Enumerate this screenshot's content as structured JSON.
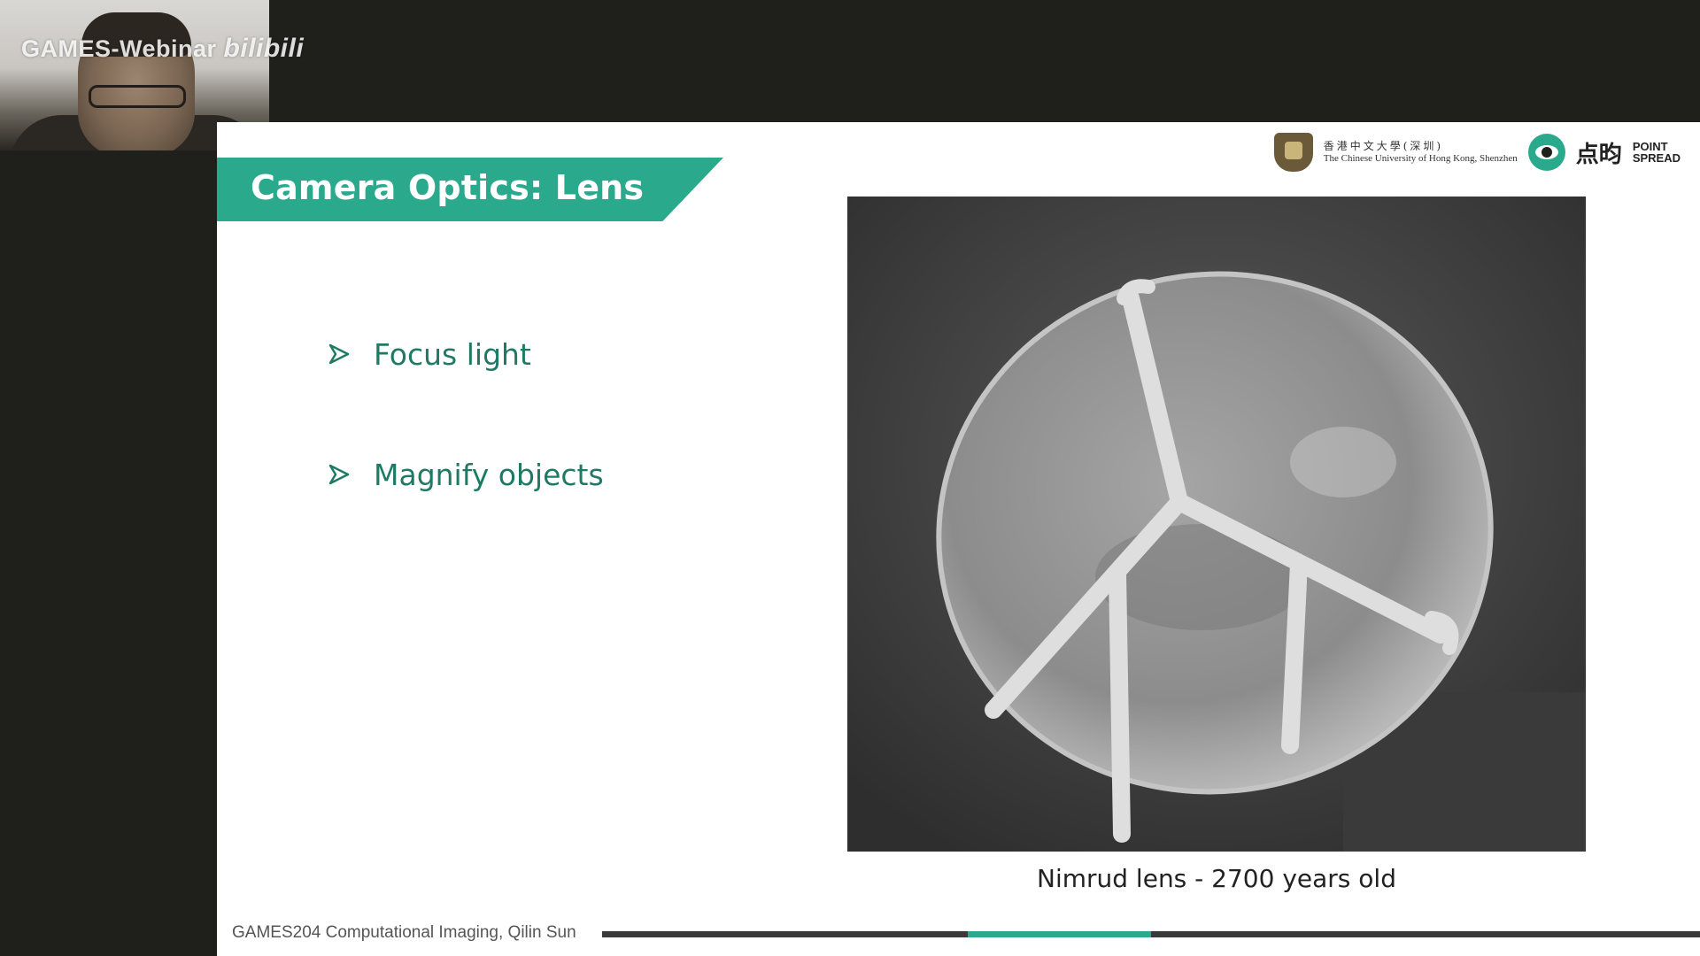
{
  "video": {
    "watermark": "GAMES-Webinar",
    "platform_logo": "bilibili"
  },
  "slide": {
    "title": "Camera Optics: Lens",
    "bullets": [
      {
        "text": "Focus light",
        "icon": "arrow-bullet-icon"
      },
      {
        "text": "Magnify objects",
        "icon": "arrow-bullet-icon"
      }
    ],
    "image_caption": "Nimrud lens - 2700 years old",
    "footer": "GAMES204 Computational Imaging, Qilin Sun",
    "progress_fraction": 0.5,
    "accent_color": "#2aa98c"
  },
  "logos": {
    "university_cn": "香港中文大學(深圳)",
    "university_en": "The Chinese University of Hong Kong, Shenzhen",
    "lab_cn": "点昀",
    "lab_en_line1": "POINT",
    "lab_en_line2": "SPREAD"
  }
}
